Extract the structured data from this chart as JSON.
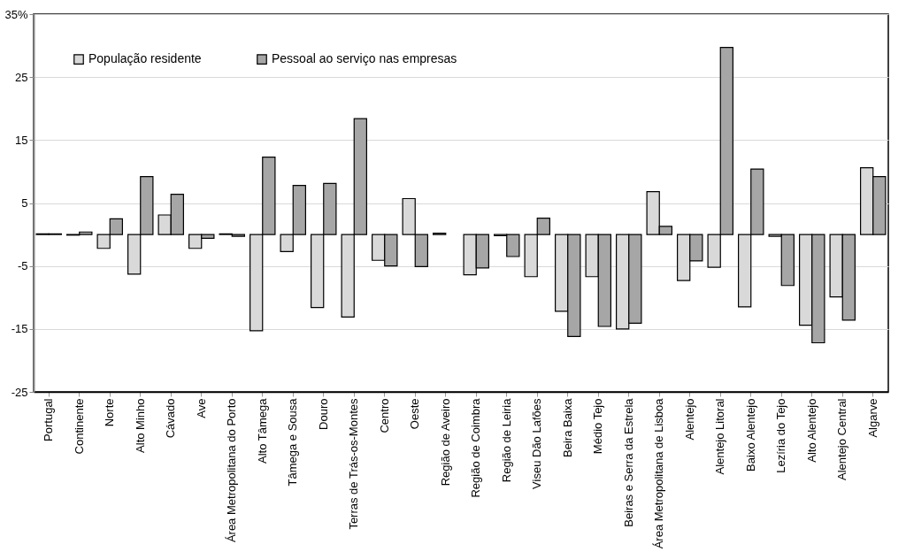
{
  "chart_data": {
    "type": "bar",
    "categories": [
      "Portugal",
      "Continente",
      "Norte",
      "Alto Minho",
      "Cávado",
      "Ave",
      "Área Metropolitana do Porto",
      "Alto Tâmega",
      "Tâmega e Sousa",
      "Douro",
      "Terras de Trás-os-Montes",
      "Centro",
      "Oeste",
      "Região de Aveiro",
      "Região de Coimbra",
      "Região de Leiria",
      "Viseu Dão Lafões",
      "Beira Baixa",
      "Médio Tejo",
      "Beiras e Serra da Estrela",
      "Área Metropolitana de Lisboa",
      "Alentejo",
      "Alentejo Litoral",
      "Baixo Alentejo",
      "Lezíria do Tejo",
      "Alto Alentejo",
      "Alentejo Central",
      "Algarve"
    ],
    "series": [
      {
        "name": "População residente",
        "color": "#d9d9d9",
        "values": [
          0.1,
          -0.1,
          -2.2,
          -6.3,
          3.1,
          -2.2,
          0.1,
          -15.3,
          -2.7,
          -11.6,
          -13.1,
          -4.1,
          5.7,
          0.2,
          -6.4,
          -0.2,
          -6.7,
          -12.2,
          -6.7,
          -15.0,
          6.8,
          -7.3,
          -5.2,
          -11.5,
          -0.3,
          -14.4,
          -9.9,
          10.6
        ]
      },
      {
        "name": "Pessoal ao serviço nas empresas",
        "color": "#a6a6a6",
        "values": [
          0.1,
          0.4,
          2.5,
          9.2,
          6.4,
          -0.6,
          -0.3,
          12.3,
          7.8,
          8.1,
          18.4,
          -5.0,
          -5.1,
          null,
          -5.3,
          -3.5,
          2.6,
          -16.2,
          -14.6,
          -14.1,
          1.3,
          -4.2,
          29.7,
          10.4,
          -8.1,
          -17.2,
          -13.6,
          9.2
        ]
      }
    ],
    "ylim": [
      -25,
      35
    ],
    "yticks": [
      -25,
      -15,
      -5,
      5,
      15,
      25,
      {
        "value": 35,
        "label": "35%"
      }
    ],
    "grid": "y",
    "legend": "top left"
  }
}
